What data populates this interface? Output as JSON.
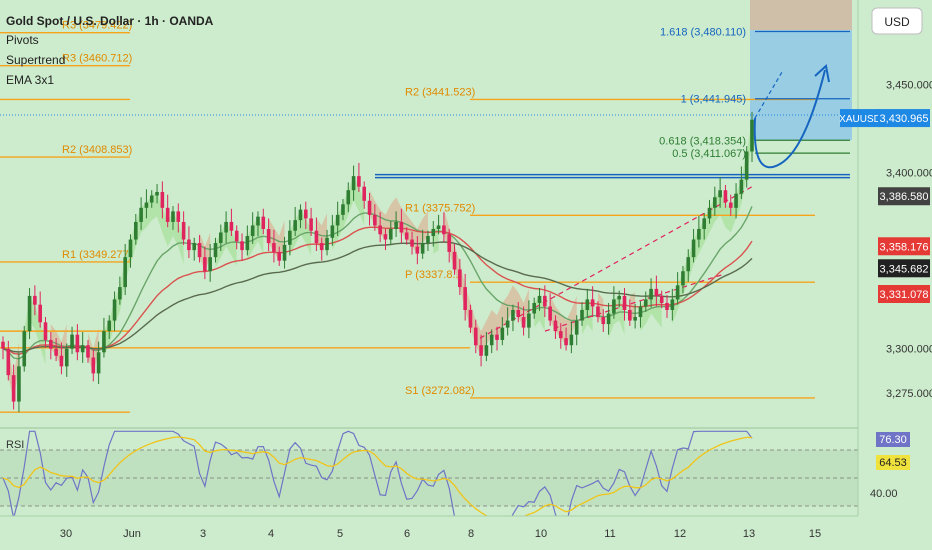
{
  "header": {
    "title": "Gold Spot / U.S. Dollar · 1h · OANDA",
    "indicators": [
      "Pivots",
      "Supertrend",
      "EMA 3x1"
    ],
    "currency_button": "USD"
  },
  "rsi_panel": {
    "label": "RSI",
    "rsi_value": "76.30",
    "ma_value": "64.53",
    "level_label": "40.00"
  },
  "colors": {
    "background": "#cdeccd",
    "pivot": "#f4a31b",
    "bull_candle": "#2e7d32",
    "bear_candle": "#e0245e",
    "resistance": "#1565c0",
    "ema_fast": "#d9534f",
    "ema_slow": "#5a6b4e",
    "supertrend_up": "#a8e29c",
    "supertrend_down": "#d9b89b",
    "rsi_line": "#6f74c6",
    "rsi_ma": "#f0c419",
    "target_box": "#8fc8e6"
  },
  "chart_data": {
    "type": "candlestick",
    "symbol": "XAUUSD",
    "ylim": [
      3255,
      3498
    ],
    "x_ticks": [
      "30",
      "Jun",
      "3",
      "4",
      "5",
      "6",
      "8",
      "10",
      "11",
      "12",
      "13",
      "15"
    ],
    "y_ticks": [
      "3,450.000",
      "3,400.000",
      "3,300.000",
      "3,275.000"
    ],
    "pivot_levels": [
      {
        "label": "R3 (3479.422)",
        "value": 3479.422
      },
      {
        "label": "R3 (3460.712)",
        "value": 3460.712
      },
      {
        "label": "R2 (3441.523)",
        "value": 3441.523
      },
      {
        "label": "R2 (3408.853)",
        "value": 3408.853
      },
      {
        "label": "R1 (3375.752)",
        "value": 3375.752
      },
      {
        "label": "R1 (3349.277)",
        "value": 3349.277
      },
      {
        "label": "P (3337.8..)",
        "value": 3337.8
      },
      {
        "label": "S1 (3272.082)",
        "value": 3272.082
      }
    ],
    "fib_levels": [
      {
        "label": "1.618 (3,480.110)",
        "value": 3480.11
      },
      {
        "label": "1 (3,441.945)",
        "value": 3441.945
      },
      {
        "label": "0.618 (3,418.354)",
        "value": 3418.354
      },
      {
        "label": "0.5 (3,411.067)",
        "value": 3411.067
      }
    ],
    "resistance_level": 3398,
    "price_labels": [
      {
        "label": "XAUUSD",
        "value": "3,430.965",
        "y": 3430.965,
        "color": "#1e88e5"
      },
      {
        "label": "",
        "value": "3,386.580",
        "y": 3386.58,
        "color": "#424242"
      },
      {
        "label": "",
        "value": "3,358.176",
        "y": 3358.176,
        "color": "#e53935"
      },
      {
        "label": "",
        "value": "3,345.682",
        "y": 3345.682,
        "color": "#212121"
      },
      {
        "label": "",
        "value": "3,331.078",
        "y": 3331.078,
        "color": "#e53935"
      }
    ],
    "candle_closes": [
      3300,
      3285,
      3270,
      3290,
      3310,
      3330,
      3325,
      3315,
      3305,
      3300,
      3296,
      3290,
      3300,
      3308,
      3298,
      3302,
      3295,
      3286,
      3298,
      3310,
      3316,
      3328,
      3335,
      3352,
      3362,
      3372,
      3380,
      3383,
      3387,
      3389,
      3380,
      3372,
      3378,
      3372,
      3362,
      3356,
      3360,
      3352,
      3344,
      3352,
      3360,
      3366,
      3372,
      3367,
      3361,
      3356,
      3364,
      3370,
      3375,
      3368,
      3360,
      3355,
      3350,
      3359,
      3367,
      3373,
      3379,
      3374,
      3367,
      3360,
      3356,
      3363,
      3370,
      3376,
      3382,
      3390,
      3398,
      3392,
      3384,
      3376,
      3370,
      3365,
      3362,
      3368,
      3372,
      3366,
      3362,
      3358,
      3354,
      3360,
      3364,
      3368,
      3370,
      3365,
      3355,
      3345,
      3335,
      3322,
      3312,
      3302,
      3296,
      3302,
      3308,
      3305,
      3312,
      3316,
      3322,
      3318,
      3312,
      3320,
      3326,
      3330,
      3324,
      3316,
      3310,
      3306,
      3302,
      3308,
      3316,
      3322,
      3328,
      3324,
      3318,
      3314,
      3320,
      3328,
      3330,
      3322,
      3316,
      3318,
      3324,
      3328,
      3334,
      3330,
      3326,
      3322,
      3328,
      3336,
      3344,
      3352,
      3362,
      3368,
      3374,
      3380,
      3386,
      3390,
      3383,
      3380,
      3388,
      3396,
      3412,
      3430
    ]
  }
}
